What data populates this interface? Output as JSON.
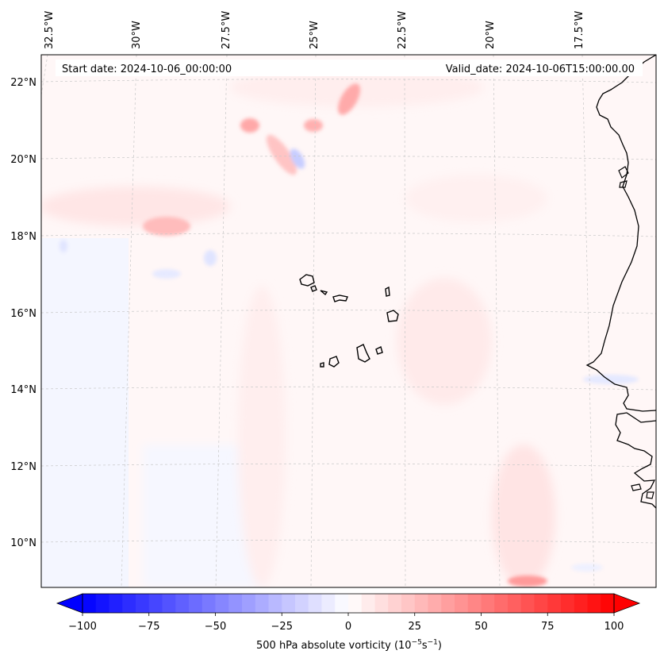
{
  "header": {
    "start_label": "Start date:",
    "start_value": "2024-10-06_00:00:00",
    "valid_label": "Valid_date:",
    "valid_value": "2024-10-06T15:00:00.00"
  },
  "axes": {
    "top_lon_labels": [
      "32.5°W",
      "30°W",
      "27.5°W",
      "25°W",
      "22.5°W",
      "20°W",
      "17.5°W"
    ],
    "left_lat_labels": [
      "22°N",
      "20°N",
      "18°N",
      "16°N",
      "14°N",
      "12°N",
      "10°N"
    ]
  },
  "colorbar": {
    "ticks": [
      "−100",
      "−75",
      "−50",
      "−25",
      "0",
      "25",
      "50",
      "75",
      "100"
    ],
    "range": [
      -100,
      100
    ],
    "levels": 40,
    "label_main": "500 hPa absolute vorticity (10",
    "label_exp1": "−5",
    "label_mid": "s",
    "label_exp2": "−1",
    "label_end": ")"
  },
  "colors": {
    "negative": "#0000ff",
    "zero": "#ffffff",
    "positive": "#ff0000",
    "coastline": "#000000",
    "gridline": "#c8c8c8"
  }
}
